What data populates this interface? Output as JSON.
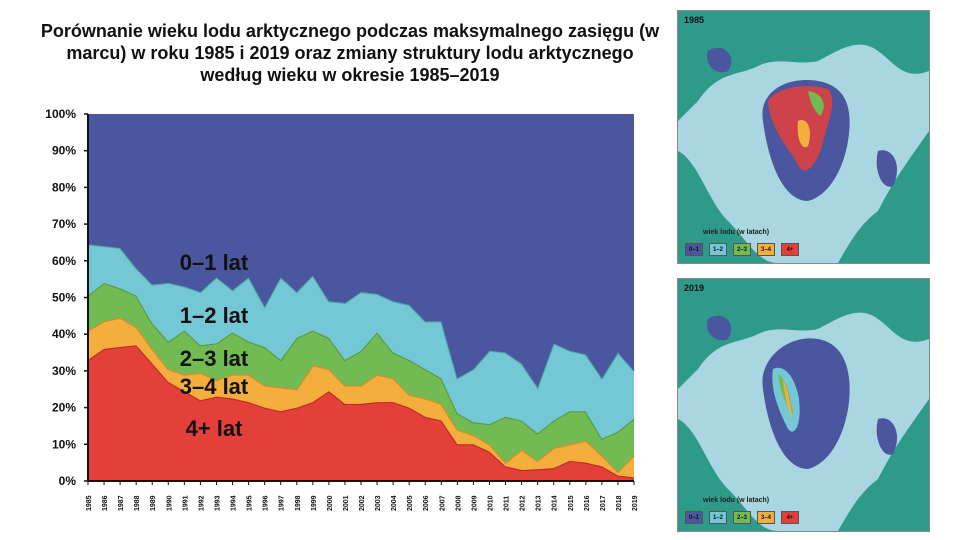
{
  "title": "Porównanie wieku lodu arktycznego podczas maksymalnego zasięgu (w marcu) w roku 1985 i 2019 oraz zmiany struktury lodu arktycznego według wieku w okresie 1985–2019",
  "chart_data": {
    "type": "area",
    "stacked": true,
    "title": "Porównanie wieku lodu arktycznego podczas maksymalnego zasięgu (w marcu) w roku 1985 i 2019 oraz zmiany struktury lodu arktycznego według wieku w okresie 1985–2019",
    "xlabel": "",
    "ylabel": "",
    "ylim": [
      0,
      100
    ],
    "yticks": [
      "0%",
      "10%",
      "20%",
      "30%",
      "40%",
      "50%",
      "60%",
      "70%",
      "80%",
      "90%",
      "100%"
    ],
    "grid": false,
    "x": [
      1985,
      1986,
      1987,
      1988,
      1989,
      1990,
      1991,
      1992,
      1993,
      1994,
      1995,
      1996,
      1997,
      1998,
      1999,
      2000,
      2001,
      2002,
      2003,
      2004,
      2005,
      2006,
      2007,
      2008,
      2009,
      2010,
      2011,
      2012,
      2013,
      2014,
      2015,
      2016,
      2017,
      2018,
      2019
    ],
    "series": [
      {
        "name": "4+ lat",
        "color": "#e4403a",
        "edge": "#c0282a",
        "values": [
          33,
          36,
          36.5,
          37,
          32,
          27,
          24.5,
          22,
          23,
          22.5,
          21.5,
          20,
          19,
          20,
          21.5,
          24.5,
          21,
          21,
          21.5,
          21.5,
          20,
          17.5,
          16.5,
          10,
          10,
          8,
          4,
          3,
          3.2,
          3.5,
          5.5,
          5,
          4,
          1.5,
          1
        ]
      },
      {
        "name": "3–4 lat",
        "color": "#f4ae3d",
        "edge": "#de8a2a",
        "values": [
          8,
          7.5,
          8,
          5,
          4,
          3.5,
          4.5,
          7.5,
          4.5,
          6.5,
          7.5,
          6,
          6.5,
          5,
          10,
          6,
          5,
          5,
          7.5,
          6.5,
          3.5,
          5,
          4.5,
          4,
          2.5,
          2,
          1,
          5.5,
          2.3,
          5.5,
          4.5,
          6,
          3,
          1,
          6
        ]
      },
      {
        "name": "2–3 lat",
        "color": "#72bb52",
        "edge": "#5a9a3c",
        "values": [
          9.5,
          10.5,
          8,
          8.5,
          7,
          7.5,
          12,
          7.5,
          10,
          11.5,
          9,
          10.5,
          7.5,
          14,
          9.5,
          8.5,
          7,
          9.5,
          11.5,
          7,
          9.5,
          8,
          7,
          4.5,
          3.5,
          5.5,
          12.5,
          8,
          7.5,
          7.5,
          9,
          8,
          4.5,
          11,
          10
        ]
      },
      {
        "name": "1–2 lat",
        "color": "#74c8d6",
        "edge": "#4fa8a8",
        "values": [
          14,
          10,
          11,
          7.5,
          10.5,
          16,
          12,
          14.5,
          18,
          11.5,
          17.5,
          11,
          22.5,
          12.5,
          15,
          10,
          15.5,
          16,
          10.5,
          14,
          15,
          13,
          15.5,
          9.5,
          14.5,
          20,
          17.5,
          15.5,
          12.5,
          21,
          16.5,
          15.5,
          16.5,
          21.5,
          13
        ]
      },
      {
        "name": "0–1 lat",
        "color": "#4a579e",
        "edge": "#4a579e",
        "values": [
          35.5,
          36,
          36.5,
          42,
          46.5,
          46,
          47,
          48.5,
          44.5,
          48,
          44.5,
          52.5,
          44.5,
          48.5,
          44,
          51,
          51.5,
          48.5,
          49,
          51,
          52,
          56.5,
          56.5,
          72,
          69.5,
          64.5,
          65,
          68,
          74.5,
          62.5,
          64.5,
          65.5,
          72,
          65,
          70
        ]
      }
    ]
  },
  "maps": [
    {
      "year": "1985",
      "legend_title": "wiek lodu (w latach)",
      "legend": [
        "0–1",
        "1–2",
        "2–3",
        "3–4",
        "4+"
      ]
    },
    {
      "year": "2019",
      "legend_title": "wiek lodu (w latach)",
      "legend": [
        "0–1",
        "1–2",
        "2–3",
        "3–4",
        "4+"
      ]
    }
  ],
  "colors": {
    "land": "#2e9a8a",
    "water": "#a9d6e0",
    "0-1": "#4a579e",
    "1-2": "#74c8d6",
    "2-3": "#72bb52",
    "3-4": "#f4ae3d",
    "4+": "#e4403a"
  }
}
